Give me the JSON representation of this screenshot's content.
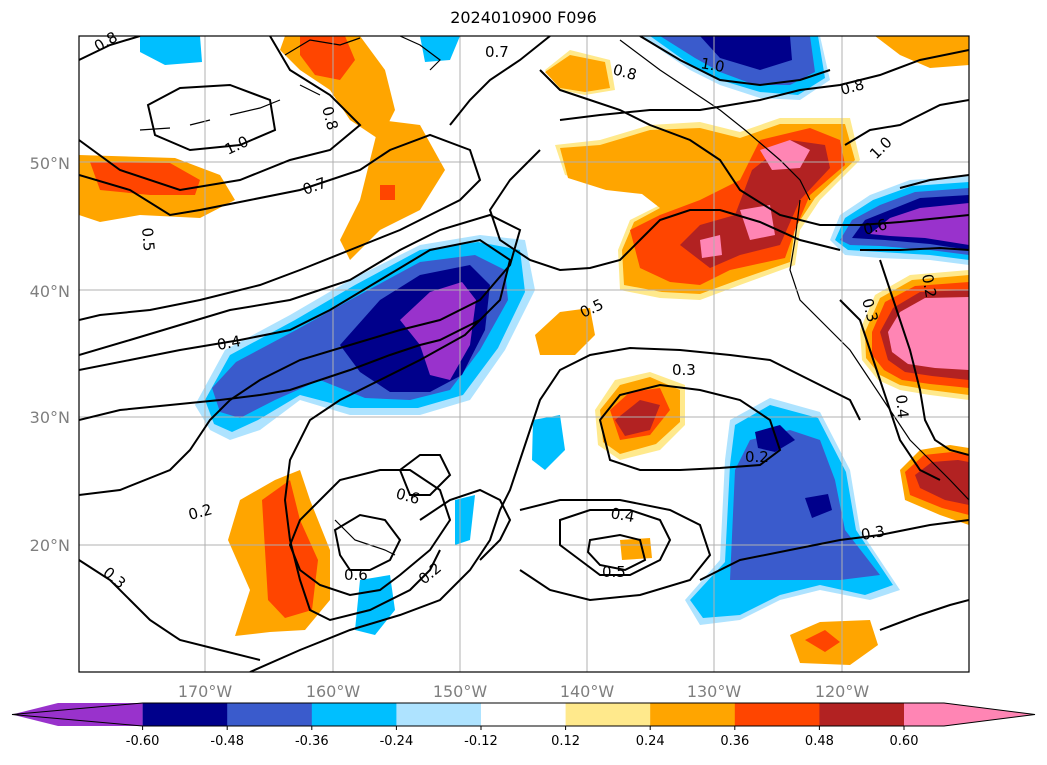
{
  "title": "2024010900 F096",
  "lat_labels": [
    "50°N",
    "40°N",
    "30°N",
    "20°N"
  ],
  "lon_labels": [
    "170°W",
    "160°W",
    "150°W",
    "140°W",
    "130°W",
    "120°W"
  ],
  "colorbar": {
    "colors": [
      "#9932cc",
      "#00008b",
      "#3a5bcc",
      "#00bfff",
      "#aee3ff",
      "#ffffff",
      "#ffe98c",
      "#ffa500",
      "#ff4500",
      "#b22222",
      "#ff85b4"
    ],
    "tick_labels": [
      "-0.60",
      "-0.48",
      "-0.36",
      "-0.24",
      "-0.12",
      "0.12",
      "0.24",
      "0.36",
      "0.48",
      "0.60"
    ]
  },
  "contour_labels": [
    "0.8",
    "0.7",
    "0.8",
    "1.0",
    "0.8",
    "1.0",
    "0.8",
    "1.0",
    "0.7",
    "0.5",
    "0.6",
    "0.4",
    "0.5",
    "0.3",
    "0.2",
    "0.3",
    "0.2",
    "0.6",
    "0.6",
    "0.2",
    "0.4",
    "0.5",
    "0.3",
    "0.3",
    "0.2",
    "0.4"
  ]
}
